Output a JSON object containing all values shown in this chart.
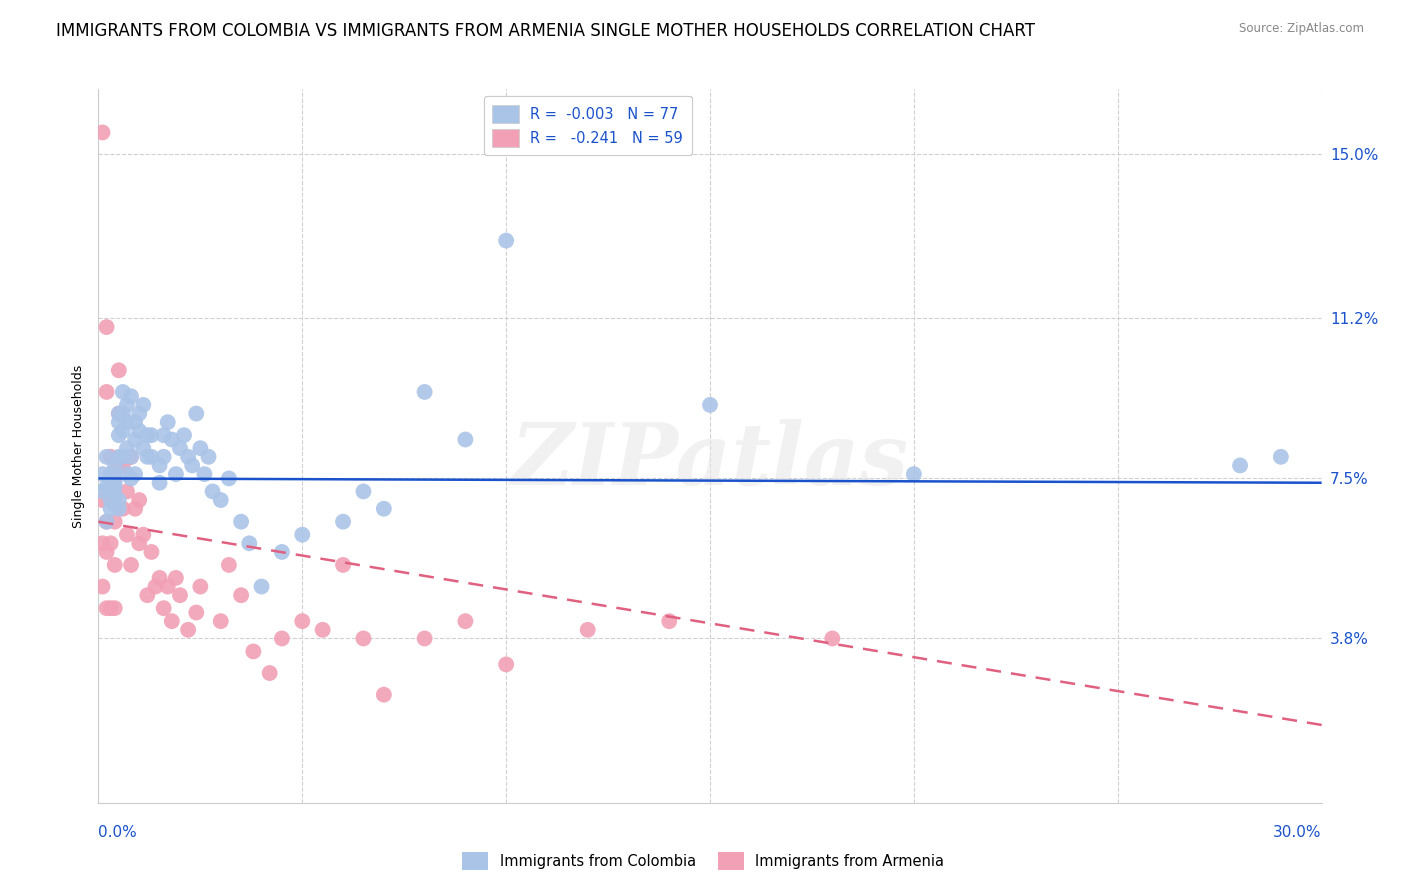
{
  "title": "IMMIGRANTS FROM COLOMBIA VS IMMIGRANTS FROM ARMENIA SINGLE MOTHER HOUSEHOLDS CORRELATION CHART",
  "source": "Source: ZipAtlas.com",
  "ylabel": "Single Mother Households",
  "right_yticks": [
    "15.0%",
    "11.2%",
    "7.5%",
    "3.8%"
  ],
  "right_ytick_vals": [
    0.15,
    0.112,
    0.075,
    0.038
  ],
  "xlim": [
    0.0,
    0.3
  ],
  "ylim": [
    0.0,
    0.165
  ],
  "colombia_color": "#aac4e8",
  "armenia_color": "#f2a0b5",
  "colombia_line_color": "#1a52cc",
  "armenia_line_color": "#e06080",
  "watermark": "ZIPatlas",
  "legend_colombia": "R =  -0.003   N = 77",
  "legend_armenia": "R =   -0.241   N = 59",
  "colombia_R": -0.003,
  "colombia_N": 77,
  "armenia_R": -0.241,
  "armenia_N": 59,
  "col_trend_x": [
    0.0,
    0.3
  ],
  "col_trend_y": [
    0.075,
    0.074
  ],
  "arm_trend_x": [
    0.0,
    0.3
  ],
  "arm_trend_y": [
    0.065,
    0.018
  ],
  "colombia_x": [
    0.001,
    0.001,
    0.002,
    0.002,
    0.002,
    0.003,
    0.003,
    0.003,
    0.003,
    0.003,
    0.004,
    0.004,
    0.004,
    0.004,
    0.004,
    0.004,
    0.005,
    0.005,
    0.005,
    0.005,
    0.005,
    0.005,
    0.006,
    0.006,
    0.006,
    0.006,
    0.007,
    0.007,
    0.007,
    0.007,
    0.008,
    0.008,
    0.008,
    0.009,
    0.009,
    0.009,
    0.01,
    0.01,
    0.011,
    0.011,
    0.012,
    0.012,
    0.013,
    0.013,
    0.015,
    0.015,
    0.016,
    0.016,
    0.017,
    0.018,
    0.019,
    0.02,
    0.021,
    0.022,
    0.023,
    0.024,
    0.025,
    0.026,
    0.027,
    0.028,
    0.03,
    0.032,
    0.035,
    0.037,
    0.04,
    0.045,
    0.05,
    0.06,
    0.065,
    0.07,
    0.08,
    0.09,
    0.1,
    0.15,
    0.2,
    0.28,
    0.29
  ],
  "colombia_y": [
    0.072,
    0.076,
    0.065,
    0.08,
    0.073,
    0.07,
    0.068,
    0.076,
    0.072,
    0.075,
    0.071,
    0.069,
    0.074,
    0.078,
    0.073,
    0.076,
    0.09,
    0.085,
    0.088,
    0.08,
    0.07,
    0.068,
    0.095,
    0.09,
    0.086,
    0.08,
    0.092,
    0.088,
    0.082,
    0.076,
    0.094,
    0.08,
    0.075,
    0.088,
    0.084,
    0.076,
    0.086,
    0.09,
    0.092,
    0.082,
    0.085,
    0.08,
    0.085,
    0.08,
    0.078,
    0.074,
    0.085,
    0.08,
    0.088,
    0.084,
    0.076,
    0.082,
    0.085,
    0.08,
    0.078,
    0.09,
    0.082,
    0.076,
    0.08,
    0.072,
    0.07,
    0.075,
    0.065,
    0.06,
    0.05,
    0.058,
    0.062,
    0.065,
    0.072,
    0.068,
    0.095,
    0.084,
    0.13,
    0.092,
    0.076,
    0.078,
    0.08
  ],
  "armenia_x": [
    0.001,
    0.001,
    0.001,
    0.001,
    0.002,
    0.002,
    0.002,
    0.002,
    0.002,
    0.003,
    0.003,
    0.003,
    0.003,
    0.004,
    0.004,
    0.004,
    0.004,
    0.005,
    0.005,
    0.005,
    0.006,
    0.006,
    0.007,
    0.007,
    0.008,
    0.008,
    0.009,
    0.01,
    0.01,
    0.011,
    0.012,
    0.013,
    0.014,
    0.015,
    0.016,
    0.017,
    0.018,
    0.019,
    0.02,
    0.022,
    0.024,
    0.025,
    0.03,
    0.032,
    0.035,
    0.038,
    0.042,
    0.045,
    0.05,
    0.055,
    0.06,
    0.065,
    0.07,
    0.08,
    0.09,
    0.1,
    0.12,
    0.14,
    0.18
  ],
  "armenia_y": [
    0.155,
    0.07,
    0.06,
    0.05,
    0.11,
    0.095,
    0.065,
    0.058,
    0.045,
    0.08,
    0.07,
    0.06,
    0.045,
    0.075,
    0.065,
    0.055,
    0.045,
    0.1,
    0.09,
    0.078,
    0.078,
    0.068,
    0.072,
    0.062,
    0.08,
    0.055,
    0.068,
    0.07,
    0.06,
    0.062,
    0.048,
    0.058,
    0.05,
    0.052,
    0.045,
    0.05,
    0.042,
    0.052,
    0.048,
    0.04,
    0.044,
    0.05,
    0.042,
    0.055,
    0.048,
    0.035,
    0.03,
    0.038,
    0.042,
    0.04,
    0.055,
    0.038,
    0.025,
    0.038,
    0.042,
    0.032,
    0.04,
    0.042,
    0.038
  ],
  "background_color": "#ffffff",
  "grid_color": "#d0d0d0",
  "title_fontsize": 12,
  "axis_label_fontsize": 9,
  "tick_fontsize": 11,
  "legend_fontsize": 10.5
}
